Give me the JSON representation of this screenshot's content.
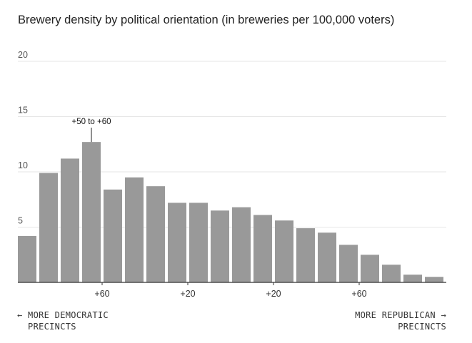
{
  "chart_data": {
    "type": "bar",
    "title": "Brewery density by political orientation (in breweries per 100,000 voters)",
    "ylim": [
      0,
      20
    ],
    "yticks": [
      5,
      10,
      15,
      20
    ],
    "values": [
      4.2,
      9.9,
      11.2,
      12.7,
      8.4,
      9.5,
      8.7,
      7.2,
      7.2,
      6.5,
      6.8,
      6.1,
      5.6,
      4.9,
      4.5,
      3.4,
      2.5,
      1.6,
      0.7,
      0.5
    ],
    "xtick_labels": [
      "+60",
      "+20",
      "+20",
      "+60"
    ],
    "annotation": {
      "label": "+50 to +60",
      "bar_index": 3
    },
    "left_direction_label": "← MORE DEMOCRATIC\n  PRECINCTS",
    "right_direction_label": "MORE REPUBLICAN →\nPRECINCTS",
    "bar_color": "#999999",
    "grid": true
  }
}
